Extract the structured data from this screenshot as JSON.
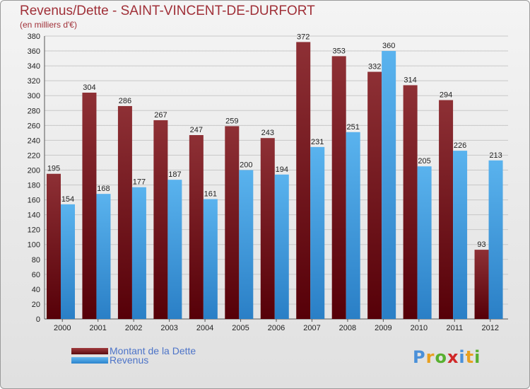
{
  "chart_data": {
    "type": "bar",
    "title": "Revenus/Dette - SAINT-VINCENT-DE-DURFORT",
    "subtitle": "(en milliers d'€)",
    "xlabel": "",
    "ylabel": "",
    "ylim": [
      0,
      380
    ],
    "ytick_step": 20,
    "grid": true,
    "categories": [
      "2000",
      "2001",
      "2002",
      "2003",
      "2004",
      "2005",
      "2006",
      "2007",
      "2008",
      "2009",
      "2010",
      "2011",
      "2012"
    ],
    "series": [
      {
        "name": "Montant de la Dette",
        "color": "#7a1f22",
        "values": [
          195,
          304,
          286,
          267,
          247,
          259,
          243,
          372,
          353,
          332,
          314,
          294,
          93
        ]
      },
      {
        "name": "Revenus",
        "color": "#4ba3e6",
        "values": [
          154,
          168,
          177,
          187,
          161,
          200,
          194,
          231,
          251,
          360,
          205,
          226,
          213
        ]
      }
    ],
    "legend_position": "bottom-left"
  },
  "logo": {
    "letters": [
      "P",
      "r",
      "o",
      "x",
      "i",
      "t",
      "i"
    ],
    "colors": [
      "#4a90d9",
      "#e8a020",
      "#58b030",
      "#d02828",
      "#4a90d9",
      "#e8a020",
      "#58b030"
    ]
  }
}
